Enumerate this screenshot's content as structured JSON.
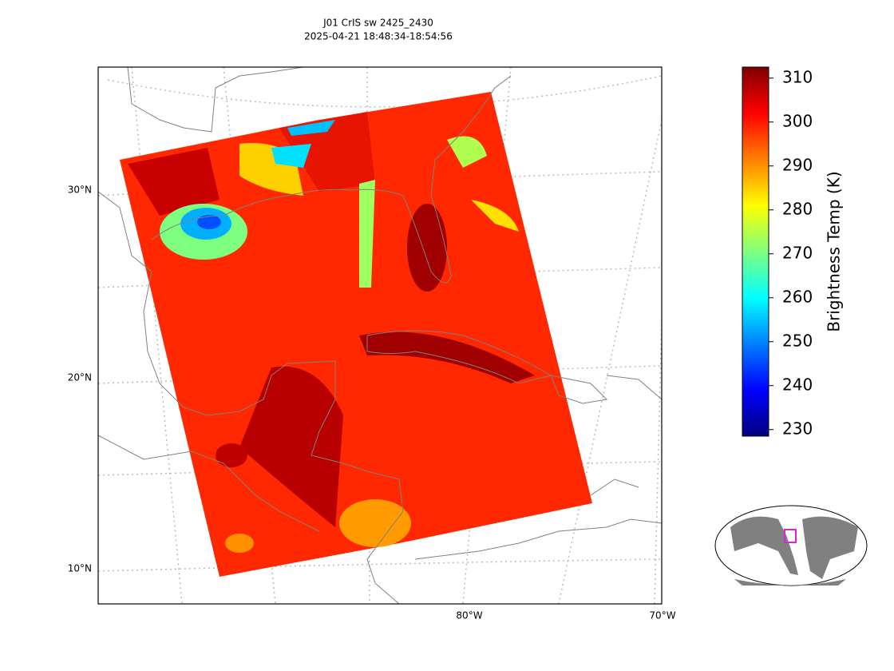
{
  "title": "J01 CrIS sw 2425_2430",
  "subtitle": "2025-04-21 18:48:34-18:54:56",
  "map": {
    "lat_labels": [
      "30°N",
      "20°N",
      "10°N"
    ],
    "lon_labels": [
      "80°W",
      "70°W"
    ]
  },
  "colorbar": {
    "label": "Brightness Temp (K)",
    "lim": [
      228.5,
      312.5
    ],
    "ticks": [
      230,
      240,
      250,
      260,
      270,
      280,
      290,
      300,
      310
    ],
    "colors": [
      "#00007f",
      "#0000ff",
      "#007fff",
      "#00ffff",
      "#7fff7f",
      "#ffff00",
      "#ff7f00",
      "#ff0000",
      "#7f0000"
    ]
  }
}
